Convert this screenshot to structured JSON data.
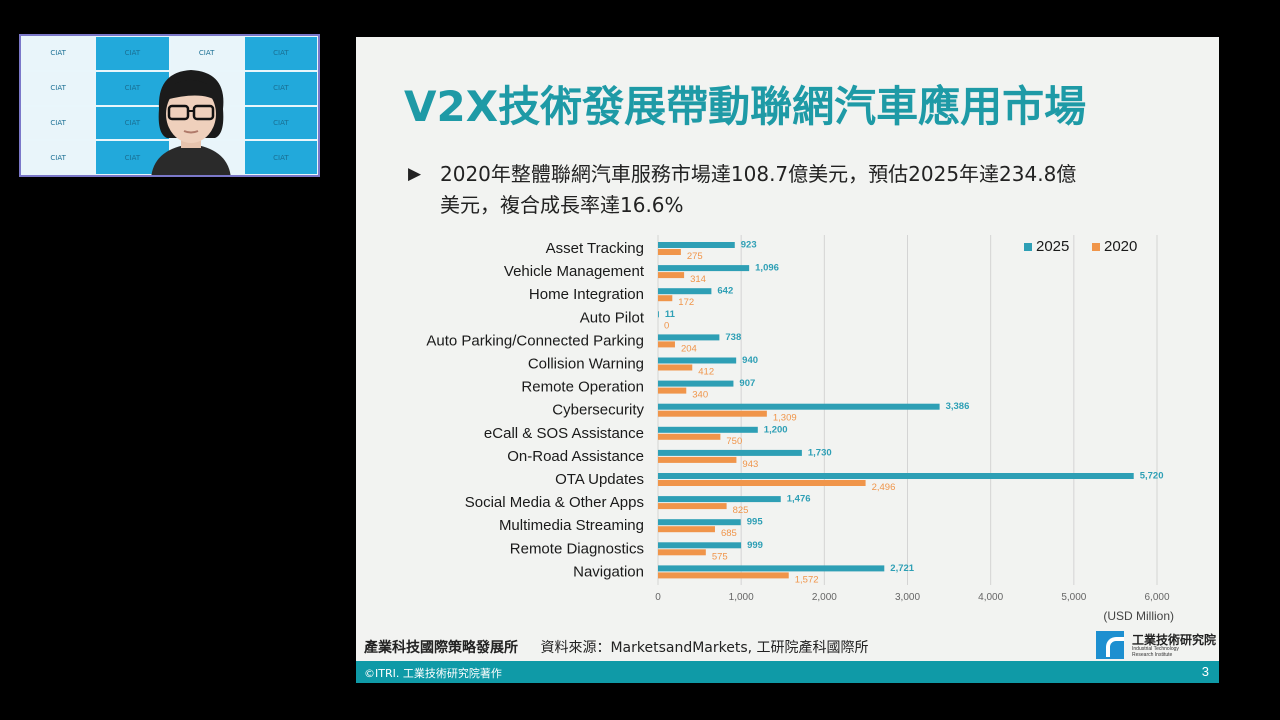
{
  "slide": {
    "title": "V2X技術發展帶動聯網汽車應用市場",
    "bullet_line1": "2020年整體聯網汽車服務市場達108.7億美元，預估2025年達234.8億",
    "bullet_line2": "美元，複合成長率達16.6%",
    "footer_org": "產業科技國際策略發展所",
    "footer_source": "資料來源：MarketsandMarkets, 工研院產科國際所",
    "logo_name": "工業技術研究院",
    "logo_en_1": "Industrial Technology",
    "logo_en_2": "Research Institute",
    "copyright": "©ITRI. 工業技術研究院著作",
    "page_number": "3"
  },
  "webcam": {
    "backdrop_text": "CIAT",
    "colors": {
      "tile": "#22a9db",
      "frame": "#7b78c9"
    }
  },
  "colors": {
    "title": "#1e9aa6",
    "series_2025": "#2e9fb5",
    "series_2020": "#f0954a",
    "bar": "#0f9aa7"
  },
  "chart_data": {
    "type": "bar",
    "orientation": "horizontal",
    "categories": [
      "Asset Tracking",
      "Vehicle Management",
      "Home Integration",
      "Auto Pilot",
      "Auto Parking/Connected Parking",
      "Collision Warning",
      "Remote Operation",
      "Cybersecurity",
      "eCall & SOS Assistance",
      "On-Road Assistance",
      "OTA Updates",
      "Social Media & Other Apps",
      "Multimedia Streaming",
      "Remote Diagnostics",
      "Navigation"
    ],
    "series": [
      {
        "name": "2025",
        "color": "#2e9fb5",
        "values": [
          923,
          1096,
          642,
          11,
          738,
          940,
          907,
          3386,
          1200,
          1730,
          5720,
          1476,
          995,
          999,
          2721
        ],
        "labels": [
          "923",
          "1,096",
          "642",
          "11",
          "738",
          "940",
          "907",
          "3,386",
          "1,200",
          "1,730",
          "5,720",
          "1,476",
          "995",
          "999",
          "2,721"
        ]
      },
      {
        "name": "2020",
        "color": "#f0954a",
        "values": [
          275,
          314,
          172,
          0,
          204,
          412,
          340,
          1309,
          750,
          943,
          2496,
          825,
          685,
          575,
          1572
        ],
        "labels": [
          "275",
          "314",
          "172",
          "0",
          "204",
          "412",
          "340",
          "1,309",
          "750",
          "943",
          "2,496",
          "825",
          "685",
          "575",
          "1,572"
        ]
      }
    ],
    "xticks": [
      "0",
      "1,000",
      "2,000",
      "3,000",
      "4,000",
      "5,000",
      "6,000"
    ],
    "xlim": [
      0,
      6000
    ],
    "xlabel": "(USD Million)",
    "legend_position": "top-right",
    "grid": true
  }
}
